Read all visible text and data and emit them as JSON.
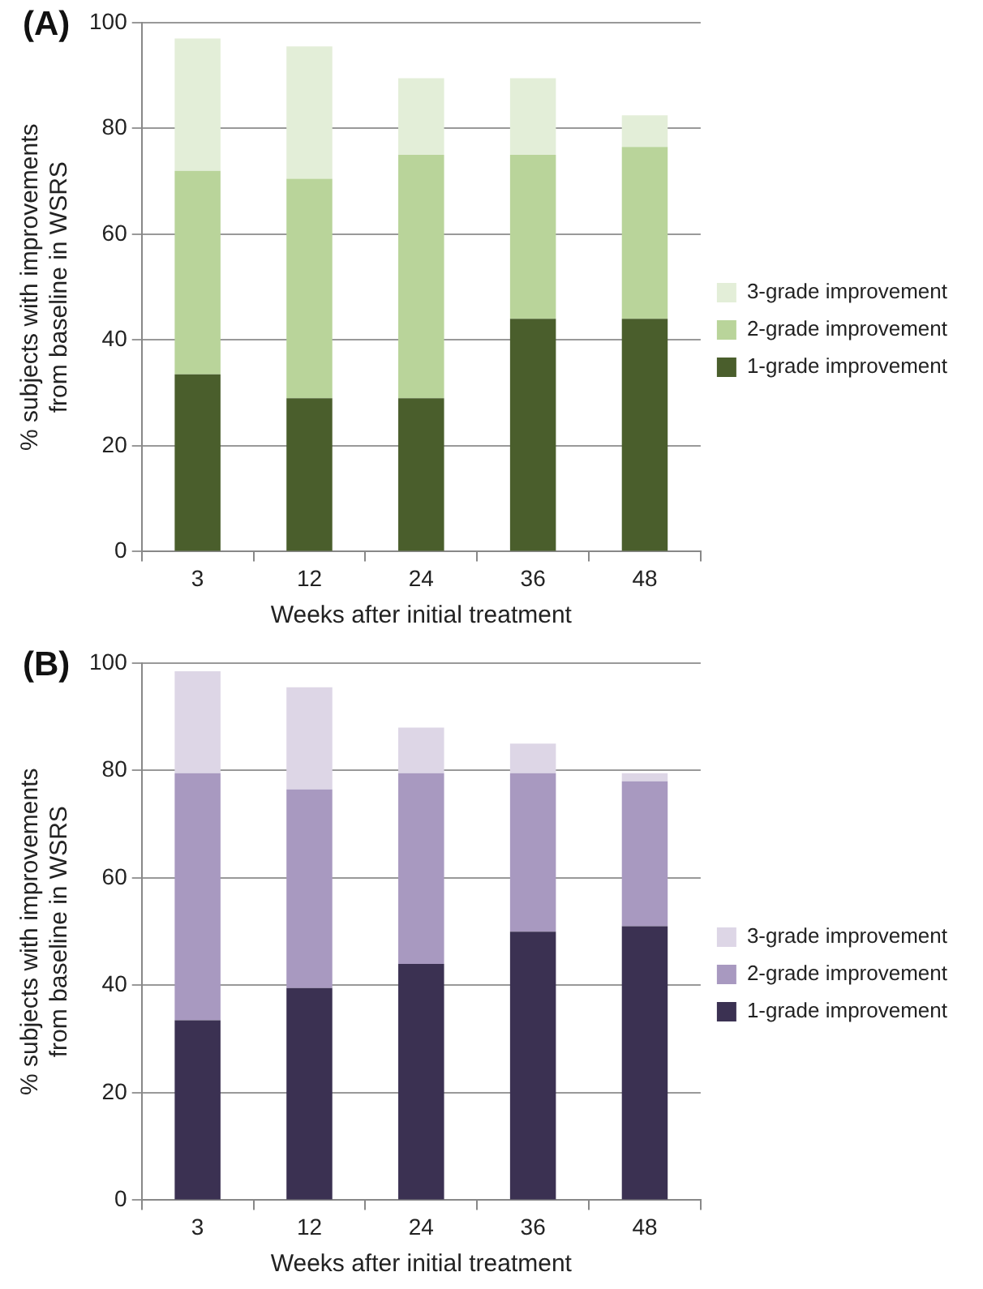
{
  "chart_data": [
    {
      "type": "bar",
      "title": "(A)",
      "stacked": true,
      "categories": [
        "3",
        "12",
        "24",
        "36",
        "48"
      ],
      "xlabel": "Weeks after initial treatment",
      "ylabel": "% subjects with improvements\nfrom baseline in WSRS",
      "ylim": [
        0,
        100
      ],
      "yticks": [
        0,
        20,
        40,
        60,
        80,
        100
      ],
      "grid": "y",
      "legend": "right",
      "series": [
        {
          "name": "1-grade improvement",
          "color": "#4a5e2c",
          "values": [
            33.5,
            29,
            29,
            44,
            44
          ]
        },
        {
          "name": "2-grade improvement",
          "color": "#b9d49a",
          "values": [
            38.5,
            41.5,
            46,
            31,
            32.5
          ]
        },
        {
          "name": "3-grade improvement",
          "color": "#e3eed8",
          "values": [
            25,
            25,
            14.5,
            14.5,
            6
          ]
        }
      ]
    },
    {
      "type": "bar",
      "title": "(B)",
      "stacked": true,
      "categories": [
        "3",
        "12",
        "24",
        "36",
        "48"
      ],
      "xlabel": "Weeks after initial treatment",
      "ylabel": "% subjects with improvements\nfrom baseline in WSRS",
      "ylim": [
        0,
        100
      ],
      "yticks": [
        0,
        20,
        40,
        60,
        80,
        100
      ],
      "grid": "y",
      "legend": "right",
      "series": [
        {
          "name": "1-grade improvement",
          "color": "#3b3152",
          "values": [
            33.5,
            39.5,
            44,
            50,
            51
          ]
        },
        {
          "name": "2-grade improvement",
          "color": "#a899c0",
          "values": [
            46,
            37,
            35.5,
            29.5,
            27
          ]
        },
        {
          "name": "3-grade improvement",
          "color": "#ddd6e6",
          "values": [
            19,
            19,
            8.5,
            5.5,
            1.5
          ]
        }
      ]
    }
  ]
}
